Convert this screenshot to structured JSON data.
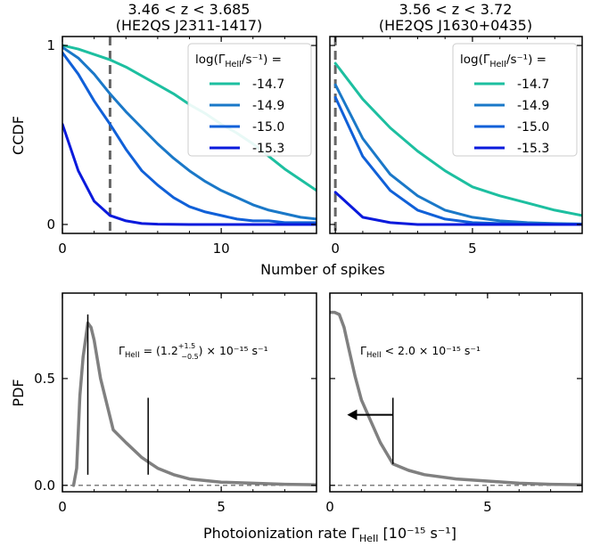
{
  "figure": {
    "x_label_top": "Number of spikes",
    "x_label_bottom": "Photoionization rate Γ",
    "x_label_bottom_sub": "HeII",
    "x_label_bottom_unit": " [10⁻¹⁵ s⁻¹]"
  },
  "chart_data": [
    {
      "type": "line",
      "panel": "top-left",
      "title_line1": "3.46 < z < 3.685",
      "title_line2": "(HE2QS J2311-1417)",
      "ylabel": "CCDF",
      "xlim": [
        0,
        16
      ],
      "ylim": [
        -0.05,
        1.05
      ],
      "xticks": [
        0,
        10
      ],
      "yticks": [
        0,
        1
      ],
      "legend_title": "log(Γ",
      "legend_title_sub": "HeII",
      "legend_title_tail": "/s⁻¹) =",
      "legend_placement": "top-right",
      "vline": 3,
      "series": [
        {
          "name": "-14.7",
          "color": "#1dbfa0",
          "x": [
            0,
            1,
            2,
            3,
            4,
            5,
            6,
            7,
            8,
            9,
            10,
            11,
            12,
            13,
            14,
            15,
            16
          ],
          "y": [
            1.0,
            0.98,
            0.95,
            0.92,
            0.88,
            0.83,
            0.78,
            0.73,
            0.67,
            0.62,
            0.56,
            0.51,
            0.45,
            0.38,
            0.31,
            0.25,
            0.19
          ]
        },
        {
          "name": "-14.9",
          "color": "#1a78c8",
          "x": [
            0,
            1,
            2,
            3,
            4,
            5,
            6,
            7,
            8,
            9,
            10,
            11,
            12,
            13,
            14,
            15,
            16
          ],
          "y": [
            0.99,
            0.93,
            0.84,
            0.73,
            0.63,
            0.54,
            0.45,
            0.37,
            0.3,
            0.24,
            0.19,
            0.15,
            0.11,
            0.08,
            0.06,
            0.04,
            0.03
          ]
        },
        {
          "name": "-15.0",
          "color": "#1060d8",
          "x": [
            0,
            1,
            2,
            3,
            4,
            5,
            6,
            7,
            8,
            9,
            10,
            11,
            12,
            13,
            14,
            15,
            16
          ],
          "y": [
            0.96,
            0.84,
            0.69,
            0.56,
            0.42,
            0.3,
            0.22,
            0.15,
            0.1,
            0.07,
            0.05,
            0.03,
            0.02,
            0.02,
            0.01,
            0.01,
            0.01
          ]
        },
        {
          "name": "-15.3",
          "color": "#0a1adc",
          "x": [
            0,
            1,
            2,
            3,
            4,
            5,
            6,
            8,
            10,
            12,
            14,
            16
          ],
          "y": [
            0.56,
            0.3,
            0.13,
            0.05,
            0.02,
            0.005,
            0.002,
            0.0,
            0.0,
            0.0,
            0.0,
            0.0
          ]
        }
      ]
    },
    {
      "type": "line",
      "panel": "top-right",
      "title_line1": "3.56 < z < 3.72",
      "title_line2": "(HE2QS J1630+0435)",
      "xlim": [
        -0.2,
        9
      ],
      "ylim": [
        -0.05,
        1.05
      ],
      "xticks": [
        0,
        5
      ],
      "legend_title": "log(Γ",
      "legend_title_sub": "HeII",
      "legend_title_tail": "/s⁻¹) =",
      "legend_placement": "top-right",
      "vline": 0,
      "series": [
        {
          "name": "-14.7",
          "color": "#1dbfa0",
          "x": [
            0,
            1,
            2,
            3,
            4,
            5,
            6,
            7,
            8,
            9
          ],
          "y": [
            0.9,
            0.7,
            0.54,
            0.41,
            0.3,
            0.21,
            0.16,
            0.12,
            0.08,
            0.05
          ]
        },
        {
          "name": "-14.9",
          "color": "#1a78c8",
          "x": [
            0,
            1,
            2,
            3,
            4,
            5,
            6,
            7,
            8,
            9
          ],
          "y": [
            0.78,
            0.48,
            0.28,
            0.16,
            0.08,
            0.04,
            0.02,
            0.01,
            0.005,
            0.003
          ]
        },
        {
          "name": "-15.0",
          "color": "#1060d8",
          "x": [
            0,
            1,
            2,
            3,
            4,
            5,
            6,
            7,
            8,
            9
          ],
          "y": [
            0.71,
            0.38,
            0.19,
            0.08,
            0.03,
            0.01,
            0.005,
            0.002,
            0.001,
            0.0
          ]
        },
        {
          "name": "-15.3",
          "color": "#0a1adc",
          "x": [
            0,
            1,
            2,
            3,
            4,
            5,
            6,
            7,
            8,
            9
          ],
          "y": [
            0.18,
            0.04,
            0.01,
            0.0,
            0.0,
            0.0,
            0.0,
            0.0,
            0.0,
            0.0
          ]
        }
      ]
    },
    {
      "type": "line",
      "panel": "bottom-left",
      "ylabel": "PDF",
      "xlim": [
        0,
        8
      ],
      "ylim": [
        -0.03,
        0.9
      ],
      "xticks": [
        0,
        5
      ],
      "yticks": [
        0.0,
        0.5
      ],
      "ytick_labels": [
        "0.0",
        "0.5"
      ],
      "annotation": "Γ",
      "annotation_sub": "HeII",
      "annotation_main": " = (1.2",
      "annotation_sup": "+1.5",
      "annotation_subscript": "−0.5",
      "annotation_tail": ") × 10⁻¹⁵ s⁻¹",
      "vlines": [
        {
          "x": 0.8,
          "y0": 0.05,
          "y1": 0.8
        },
        {
          "x": 2.7,
          "y0": 0.05,
          "y1": 0.41
        }
      ],
      "dashed_hline": 0.0,
      "series": [
        {
          "color": "#808080",
          "x": [
            0.35,
            0.45,
            0.55,
            0.65,
            0.8,
            0.9,
            1.0,
            1.2,
            1.6,
            2.0,
            2.5,
            2.7,
            3.0,
            3.5,
            4.0,
            5.0,
            6.0,
            7.0,
            8.0
          ],
          "y": [
            0.0,
            0.08,
            0.42,
            0.6,
            0.76,
            0.74,
            0.68,
            0.5,
            0.26,
            0.2,
            0.13,
            0.11,
            0.08,
            0.05,
            0.03,
            0.015,
            0.01,
            0.005,
            0.003
          ]
        }
      ]
    },
    {
      "type": "line",
      "panel": "bottom-right",
      "xlim": [
        0,
        8
      ],
      "ylim": [
        -0.03,
        0.9
      ],
      "xticks": [
        0,
        5
      ],
      "annotation": "Γ",
      "annotation_sub": "HeII",
      "annotation_main": " < 2.0 × 10⁻¹⁵ s⁻¹",
      "vline": {
        "x": 2.0,
        "y0": 0.1,
        "y1": 0.41
      },
      "arrow": {
        "x_from": 2.0,
        "x_to": 0.55,
        "y": 0.33
      },
      "dashed_hline": 0.0,
      "series": [
        {
          "color": "#808080",
          "x": [
            0,
            0.15,
            0.3,
            0.45,
            0.6,
            0.8,
            1.0,
            1.3,
            1.6,
            2.0,
            2.5,
            3.0,
            4.0,
            5.0,
            6.0,
            7.0,
            8.0
          ],
          "y": [
            0.81,
            0.81,
            0.8,
            0.74,
            0.64,
            0.51,
            0.4,
            0.3,
            0.2,
            0.1,
            0.07,
            0.05,
            0.03,
            0.02,
            0.01,
            0.005,
            0.003
          ]
        }
      ]
    }
  ]
}
